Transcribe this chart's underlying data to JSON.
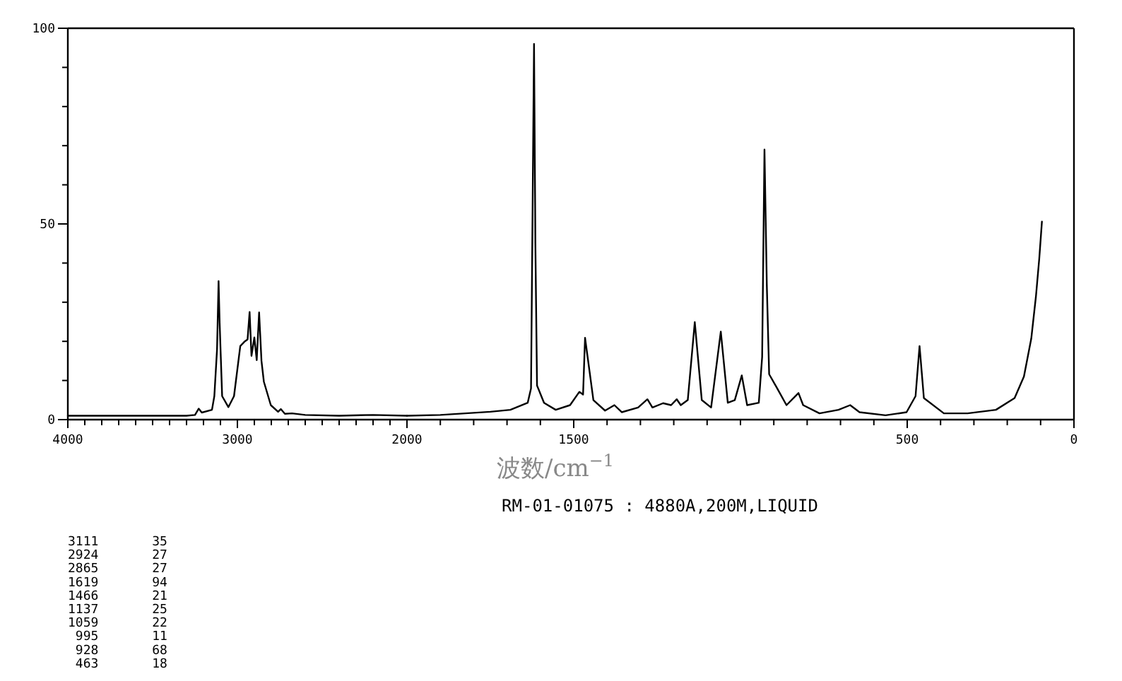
{
  "chart_data": [
    {
      "type": "line",
      "color": "#000000",
      "x": [
        4000,
        3300,
        3250,
        3228,
        3210,
        3150,
        3136,
        3120,
        3111,
        3105,
        3090,
        3053,
        3020,
        2983,
        2956,
        2940,
        2928,
        2917,
        2900,
        2886,
        2872,
        2858,
        2844,
        2803,
        2760,
        2744,
        2720,
        2678,
        2600,
        2400,
        2200,
        2000
      ],
      "values": [
        1.0,
        1.0,
        1.2,
        2.8,
        1.8,
        2.5,
        6,
        18,
        35.4,
        25,
        6,
        3.2,
        6,
        18.8,
        20,
        20.5,
        27.5,
        16.3,
        21,
        15.2,
        27.4,
        15,
        9.7,
        3.7,
        2,
        2.7,
        1.5,
        1.6,
        1.2,
        1.0,
        1.2,
        1.0
      ],
      "xlim": [
        4000,
        2000
      ],
      "ylim": [
        0,
        100
      ],
      "xticks": [
        4000,
        {
          "value": 3900,
          "label": null
        },
        {
          "value": 3800,
          "label": null
        },
        {
          "value": 3700,
          "label": null
        },
        {
          "value": 3600,
          "label": null
        },
        {
          "value": 3500,
          "label": null
        },
        {
          "value": 3400,
          "label": null
        },
        {
          "value": 3300,
          "label": null
        },
        {
          "value": 3200,
          "label": null
        },
        {
          "value": 3100,
          "label": null
        },
        3000,
        {
          "value": 2900,
          "label": null
        },
        {
          "value": 2800,
          "label": null
        },
        {
          "value": 2700,
          "label": null
        },
        {
          "value": 2600,
          "label": null
        },
        {
          "value": 2500,
          "label": null
        },
        {
          "value": 2400,
          "label": null
        },
        {
          "value": 2300,
          "label": null
        },
        {
          "value": 2200,
          "label": null
        },
        {
          "value": 2100,
          "label": null
        },
        2000
      ],
      "yticks": [
        0,
        {
          "value": 10,
          "label": null
        },
        {
          "value": 20,
          "label": null
        },
        {
          "value": 30,
          "label": null
        },
        {
          "value": 40,
          "label": null
        },
        50,
        {
          "value": 60,
          "label": null
        },
        {
          "value": 70,
          "label": null
        },
        {
          "value": 80,
          "label": null
        },
        {
          "value": 90,
          "label": null
        },
        100
      ],
      "annotations": [
        "3111       35",
        "2924       27",
        "2865       27",
        "1619       94",
        "1466       21",
        "1137       25",
        "1059       22",
        " 995       11",
        " 928       68",
        " 463       18"
      ]
    },
    {
      "type": "line",
      "color": "#000000",
      "x": [
        2000,
        1900,
        1750,
        1690,
        1638,
        1628,
        1619,
        1615,
        1610,
        1589,
        1554,
        1511,
        1483,
        1472,
        1466,
        1441,
        1406,
        1378,
        1356,
        1307,
        1279,
        1264,
        1232,
        1208,
        1191,
        1179,
        1158,
        1137,
        1116,
        1088,
        1059,
        1038,
        1017,
        996,
        980,
        945,
        935,
        928,
        921,
        914,
        890,
        862,
        826,
        812,
        763,
        706,
        671,
        643,
        565,
        502,
        475,
        463,
        450,
        390,
        319,
        234,
        178,
        150,
        128,
        114,
        104,
        96
      ],
      "values": [
        1.0,
        1.2,
        2.0,
        2.5,
        4.3,
        8,
        96,
        45,
        8.7,
        4.3,
        2.5,
        3.7,
        7.1,
        6.4,
        20.9,
        5,
        2.3,
        3.7,
        1.9,
        3.1,
        5.2,
        3.1,
        4.2,
        3.7,
        5.2,
        3.7,
        5,
        24.9,
        5,
        3.1,
        22.5,
        4.3,
        5,
        11.3,
        3.7,
        4.3,
        16,
        69,
        34.5,
        11.6,
        8,
        3.7,
        6.8,
        3.7,
        1.6,
        2.5,
        3.7,
        1.9,
        1.1,
        1.9,
        6,
        18.8,
        5.5,
        1.6,
        1.6,
        2.5,
        5.5,
        11,
        20.7,
        31.5,
        41.2,
        50.6
      ],
      "xlim": [
        2000,
        0
      ],
      "ylim": [
        0,
        100
      ],
      "tick_labels": "x",
      "xticks": [
        {
          "value": 1900,
          "label": null
        },
        {
          "value": 1800,
          "label": null
        },
        {
          "value": 1700,
          "label": null
        },
        {
          "value": 1600,
          "label": null
        },
        1500,
        {
          "value": 1400,
          "label": null
        },
        {
          "value": 1300,
          "label": null
        },
        {
          "value": 1200,
          "label": null
        },
        {
          "value": 1100,
          "label": null
        },
        {
          "value": 1000,
          "label": null
        },
        {
          "value": 900,
          "label": null
        },
        {
          "value": 800,
          "label": null
        },
        {
          "value": 700,
          "label": null
        },
        {
          "value": 600,
          "label": null
        },
        500,
        {
          "value": 400,
          "label": null
        },
        {
          "value": 300,
          "label": null
        },
        {
          "value": 200,
          "label": null
        },
        {
          "value": 100,
          "label": null
        },
        0
      ],
      "xlabel": "波数/cm$^{−1}$",
      "subtitle": "RM-01-01075 : 4880A,200M,LIQUID"
    }
  ]
}
